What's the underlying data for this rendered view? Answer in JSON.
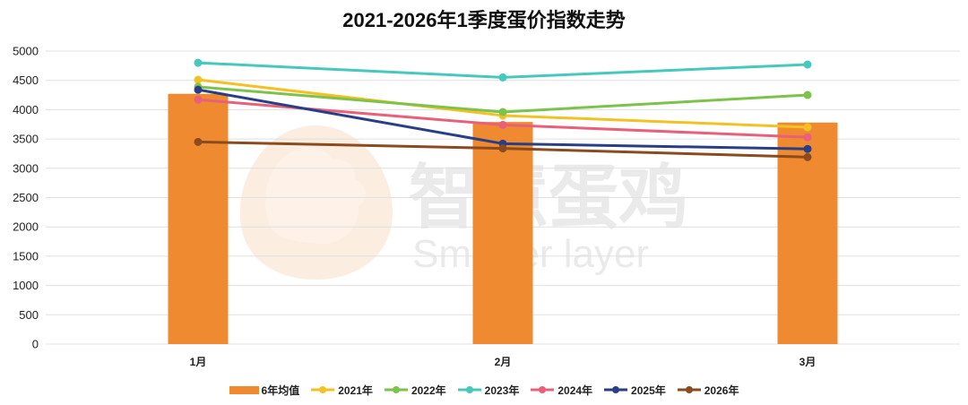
{
  "watermark": {
    "cn": "智慧蛋鸡",
    "en": "Smarter layer"
  },
  "chart_data": {
    "type": "bar",
    "title": "2021-2026年1季度蛋价指数走势",
    "categories": [
      "1月",
      "2月",
      "3月"
    ],
    "ylim": [
      0,
      5000
    ],
    "yticks": [
      0,
      500,
      1000,
      1500,
      2000,
      2500,
      3000,
      3500,
      4000,
      4500,
      5000
    ],
    "grid": true,
    "legend": "bottom",
    "series": [
      {
        "name": "6年均值",
        "type": "bar",
        "color": "#EF8A30",
        "values": [
          4270,
          3790,
          3780
        ]
      },
      {
        "name": "2021年",
        "type": "line",
        "color": "#F3C123",
        "values": [
          4510,
          3900,
          3700
        ]
      },
      {
        "name": "2022年",
        "type": "line",
        "color": "#7DC24B",
        "values": [
          4390,
          3960,
          4250
        ]
      },
      {
        "name": "2023年",
        "type": "line",
        "color": "#47C8BE",
        "values": [
          4800,
          4550,
          4770
        ]
      },
      {
        "name": "2024年",
        "type": "line",
        "color": "#E8607A",
        "values": [
          4170,
          3740,
          3530
        ]
      },
      {
        "name": "2025年",
        "type": "line",
        "color": "#283F85",
        "values": [
          4340,
          3420,
          3330
        ]
      },
      {
        "name": "2026年",
        "type": "line",
        "color": "#8A4B1F",
        "values": [
          3450,
          3340,
          3190
        ]
      }
    ]
  }
}
